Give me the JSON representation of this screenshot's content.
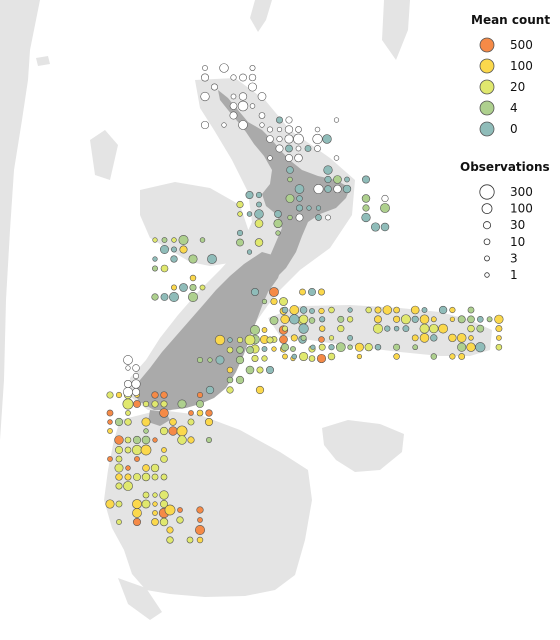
{
  "map": {
    "land_color": "#e4e4e4",
    "new_zealand_color": "#aaaaaa",
    "point_stroke": "#555555"
  },
  "legend": {
    "count": {
      "title": "Mean count",
      "items": [
        {
          "label": "500",
          "color": "#f58a47"
        },
        {
          "label": "100",
          "color": "#fbd84c"
        },
        {
          "label": "20",
          "color": "#e0e86e"
        },
        {
          "label": "4",
          "color": "#aed08e"
        },
        {
          "label": "0",
          "color": "#8fbcb9"
        }
      ]
    },
    "observations": {
      "title": "Observations",
      "items": [
        {
          "label": "300",
          "value": 300
        },
        {
          "label": "100",
          "value": 100
        },
        {
          "label": "30",
          "value": 30
        },
        {
          "label": "10",
          "value": 10
        },
        {
          "label": "3",
          "value": 3
        },
        {
          "label": "1",
          "value": 1
        }
      ]
    }
  }
}
